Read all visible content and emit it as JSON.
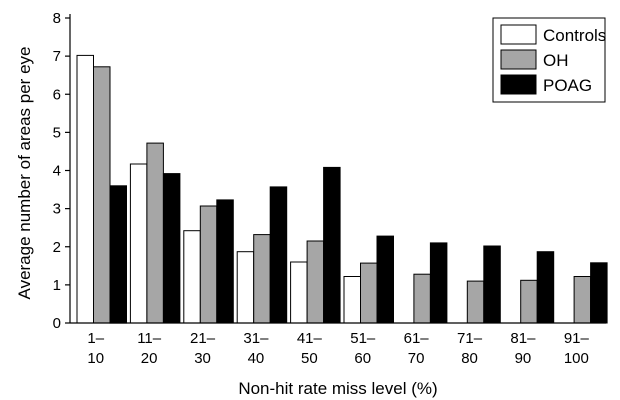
{
  "chart_data": {
    "type": "bar",
    "title": "",
    "xlabel": "Non-hit rate miss level (%)",
    "ylabel": "Average number of areas per eye",
    "ylim": [
      0,
      8
    ],
    "yticks": [
      0,
      1,
      2,
      3,
      4,
      5,
      6,
      7,
      8
    ],
    "grid": false,
    "legend_position": "top-right",
    "categories": [
      [
        "1–",
        "10"
      ],
      [
        "11–",
        "20"
      ],
      [
        "21–",
        "30"
      ],
      [
        "31–",
        "40"
      ],
      [
        "41–",
        "50"
      ],
      [
        "51–",
        "60"
      ],
      [
        "61–",
        "70"
      ],
      [
        "71–",
        "80"
      ],
      [
        "81–",
        "90"
      ],
      [
        "91–",
        "100"
      ]
    ],
    "series": [
      {
        "name": "Controls",
        "color": "#ffffff",
        "values": [
          7.02,
          4.17,
          2.42,
          1.87,
          1.6,
          1.22,
          0,
          0,
          0,
          0
        ]
      },
      {
        "name": "OH",
        "color": "#a6a6a6",
        "values": [
          6.72,
          4.72,
          3.07,
          2.32,
          2.15,
          1.57,
          1.28,
          1.1,
          1.12,
          1.22
        ]
      },
      {
        "name": "POAG",
        "color": "#000000",
        "values": [
          3.6,
          3.92,
          3.23,
          3.57,
          4.08,
          2.28,
          2.1,
          2.02,
          1.87,
          1.58
        ]
      }
    ]
  }
}
